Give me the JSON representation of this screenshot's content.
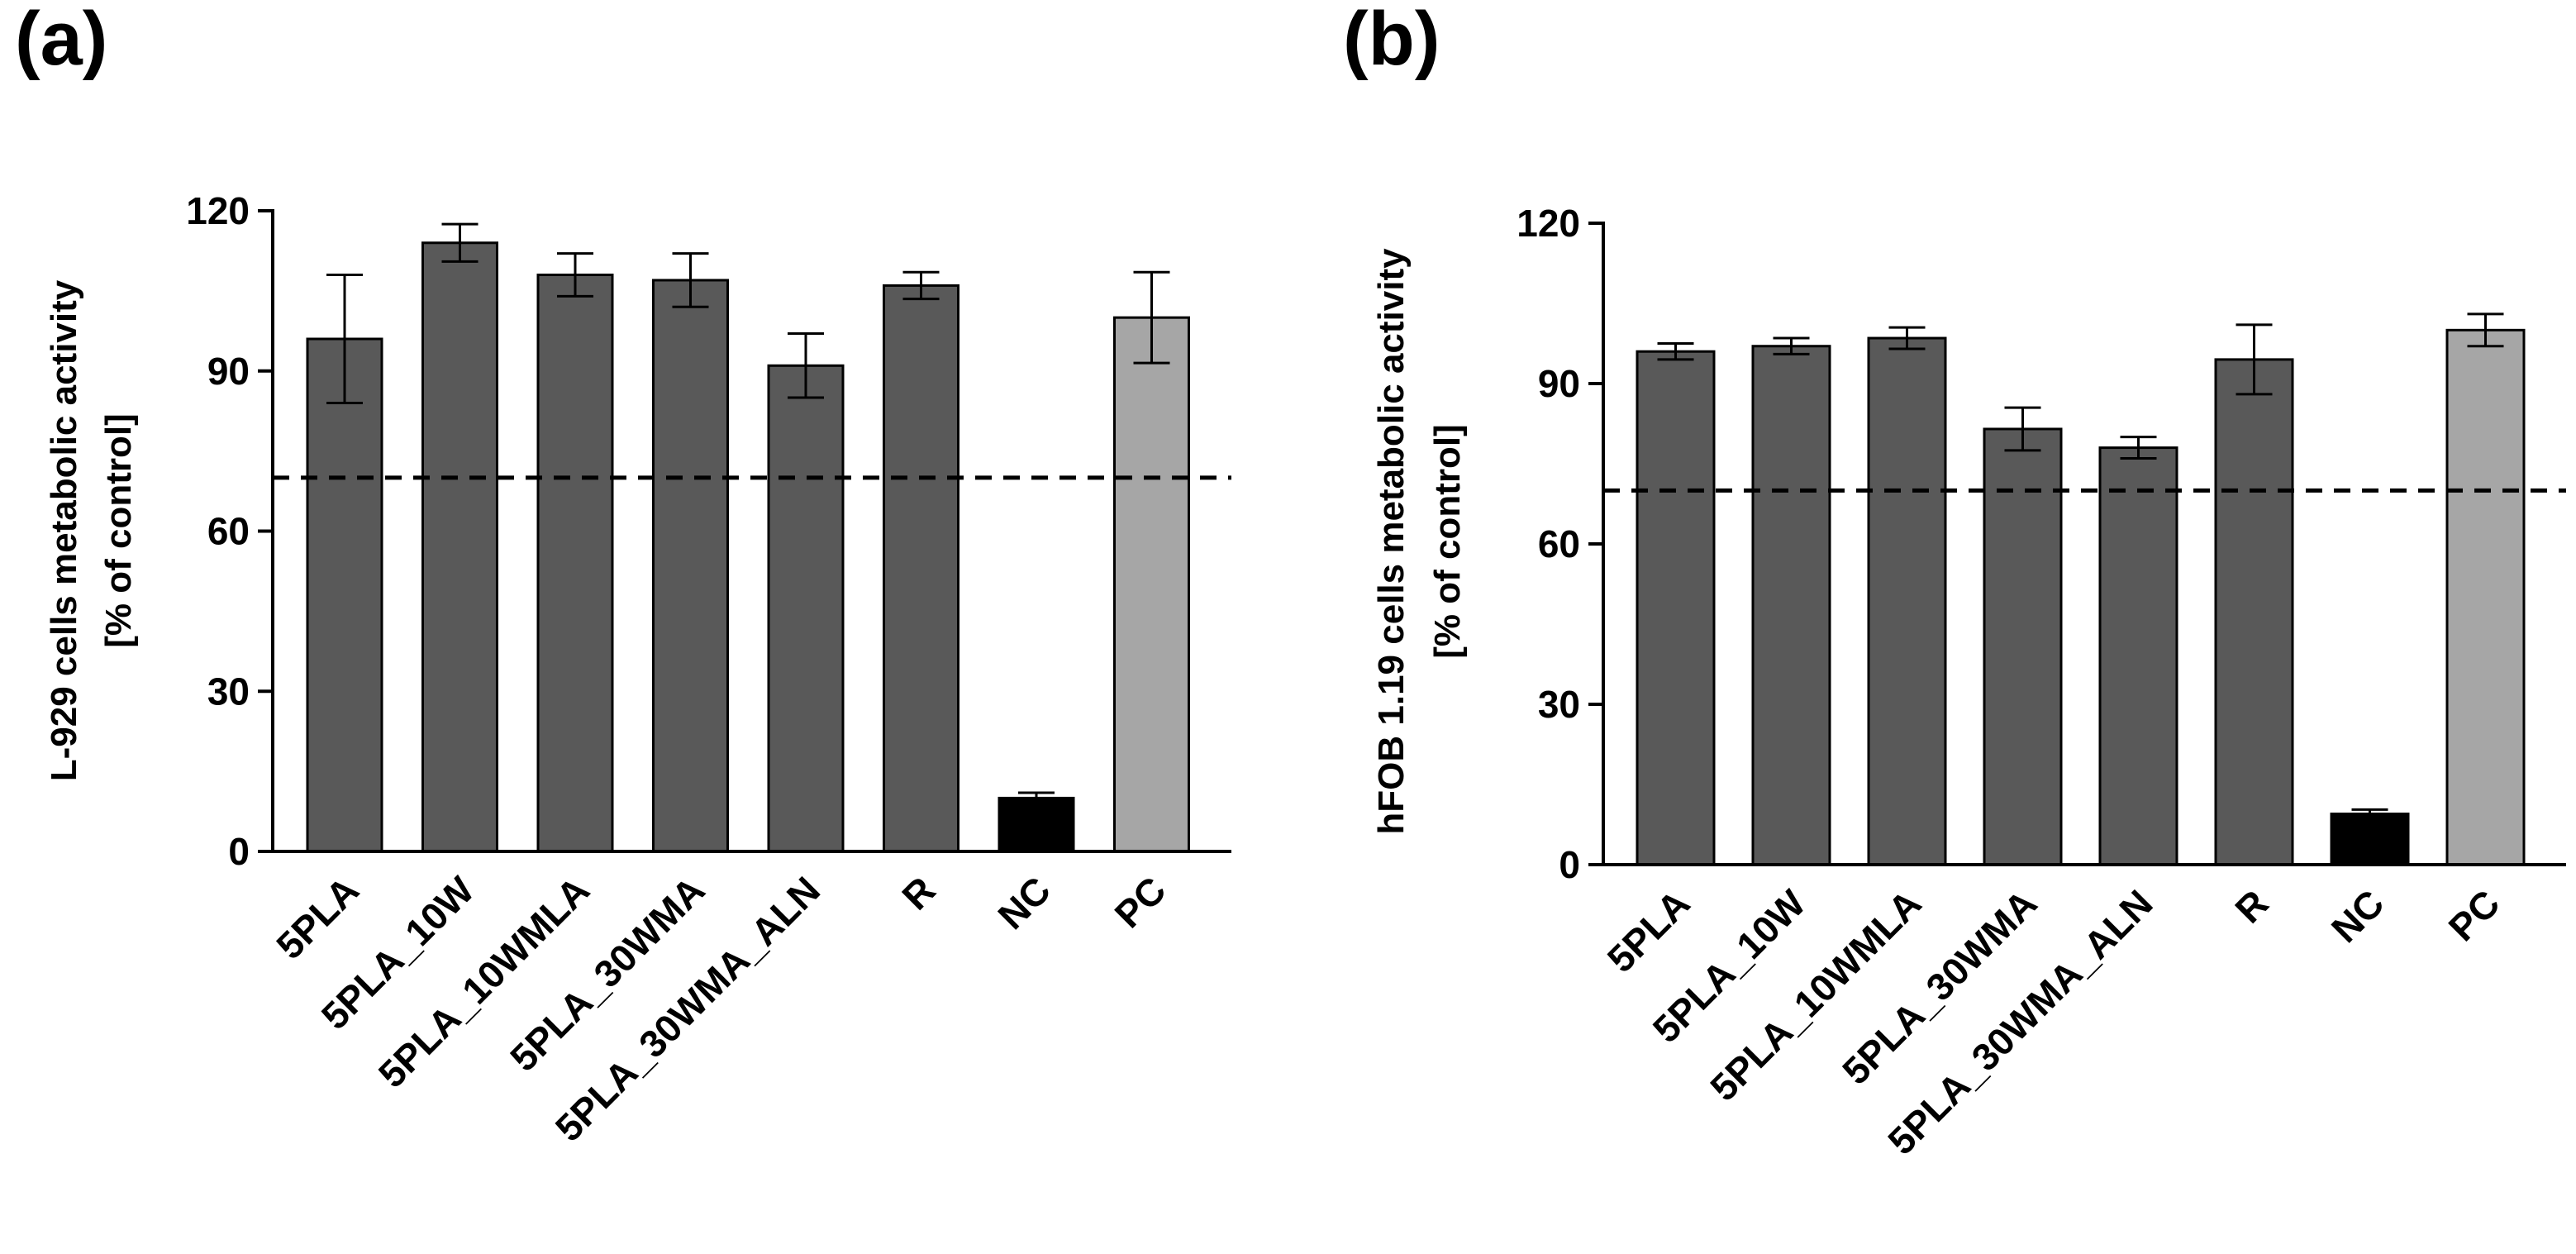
{
  "chart_data": [
    {
      "panel_label": "(a)",
      "type": "bar",
      "ylabel_line1": "L-929 cells metabolic activity",
      "ylabel_line2": "[% of control]",
      "ylim": [
        0,
        120
      ],
      "yticks": [
        "0",
        "30",
        "60",
        "90",
        "120"
      ],
      "threshold": 70,
      "categories": [
        "5PLA",
        "5PLA_10W",
        "5PLA_10WMLA",
        "5PLA_30WMA",
        "5PLA_30WMA_ALN",
        "R",
        "NC",
        "PC"
      ],
      "values": [
        96,
        114,
        108,
        107,
        91,
        106,
        10,
        100
      ],
      "errors": [
        12,
        3.5,
        4,
        5,
        6,
        2.5,
        1,
        8.5
      ],
      "colors": [
        "#595959",
        "#595959",
        "#595959",
        "#595959",
        "#595959",
        "#595959",
        "#000000",
        "#a6a6a6"
      ]
    },
    {
      "panel_label": "(b)",
      "type": "bar",
      "ylabel_line1": "hFOB 1.19 cells metabolic activity",
      "ylabel_line2": "[% of control]",
      "ylim": [
        0,
        120
      ],
      "yticks": [
        "0",
        "30",
        "60",
        "90",
        "120"
      ],
      "threshold": 70,
      "categories": [
        "5PLA",
        "5PLA_10W",
        "5PLA_10WMLA",
        "5PLA_30WMA",
        "5PLA_30WMA_ALN",
        "R",
        "NC",
        "PC"
      ],
      "values": [
        96,
        97,
        98.5,
        81.5,
        78,
        94.5,
        9.5,
        100
      ],
      "errors": [
        1.5,
        1.5,
        2,
        4,
        2,
        6.5,
        0.8,
        3
      ],
      "colors": [
        "#595959",
        "#595959",
        "#595959",
        "#595959",
        "#595959",
        "#595959",
        "#000000",
        "#a6a6a6"
      ]
    }
  ]
}
